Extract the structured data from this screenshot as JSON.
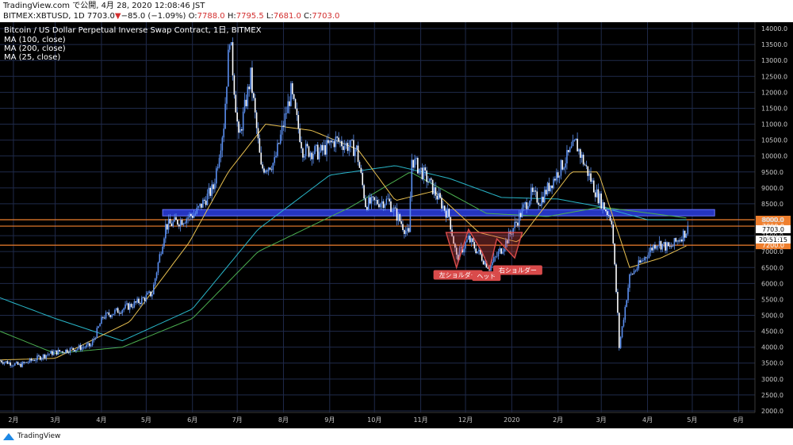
{
  "header": {
    "line1": "TradingView.com で公開, 4月 28, 2020 12:08:46 JST",
    "symbol": "BITMEX:XBTUSD, 1D",
    "last": "7703.0",
    "change": "−85.0 (−1.09%)",
    "o_label": "O:",
    "o": "7788.0",
    "h_label": "H:",
    "h": "7795.5",
    "l_label": "L:",
    "l": "7681.0",
    "c_label": "C:",
    "c": "7703.0"
  },
  "footer": {
    "brand": "TradingView"
  },
  "colors": {
    "candle": "#5b8ff0",
    "grid": "#1f2a4a",
    "ma25": "#e8c050",
    "ma100": "#29b6c8",
    "ma200": "#4caf50",
    "hline": "#ef7f2e",
    "zone": "#2535c0",
    "pattern": "#d94b4b"
  },
  "chart_data": {
    "type": "candlestick",
    "title": "Bitcoin / US Dollar Perpetual Inverse Swap Contract, 1日, BITMEX",
    "legend": [
      "MA (100, close)",
      "MA (200, close)",
      "MA (25, close)"
    ],
    "x_tick_labels": [
      "2月",
      "3月",
      "4月",
      "5月",
      "6月",
      "7月",
      "8月",
      "9月",
      "10月",
      "11月",
      "12月",
      "2020",
      "2月",
      "3月",
      "4月",
      "5月",
      "6月"
    ],
    "y_tick_labels": [
      "14000.0",
      "13500.0",
      "13000.0",
      "12500.0",
      "12000.0",
      "11500.0",
      "11000.0",
      "10500.0",
      "10000.0",
      "9500.0",
      "9000.0",
      "8500.0",
      "8000.0",
      "7500.0",
      "7000.0",
      "6500.0",
      "6000.0",
      "5500.0",
      "5000.0",
      "4500.0",
      "4000.0",
      "3500.0",
      "3000.0",
      "2500.0",
      "2000.0"
    ],
    "ylim": [
      1950,
      14200
    ],
    "price_label": "7703.0",
    "countdown_label": "20:51:15",
    "horizontal_lines": [
      {
        "value": 8000,
        "label": "8000.0",
        "color": "#ef7f2e"
      },
      {
        "value": 7800,
        "label": "7800.0",
        "color": "#ef7f2e"
      },
      {
        "value": 7200,
        "label": "7200.0",
        "color": "#ef7f2e"
      }
    ],
    "resistance_zone": {
      "from": 8120,
      "to": 8320
    },
    "pattern_labels": [
      "左ショルダー",
      "ヘッド",
      "右ショルダー"
    ],
    "price_path": [
      [
        "2019-01-23",
        3580
      ],
      [
        "2019-02-05",
        3430
      ],
      [
        "2019-02-25",
        3800
      ],
      [
        "2019-03-25",
        4050
      ],
      [
        "2019-04-02",
        4950
      ],
      [
        "2019-04-25",
        5400
      ],
      [
        "2019-05-05",
        5700
      ],
      [
        "2019-05-14",
        7800
      ],
      [
        "2019-05-25",
        8000
      ],
      [
        "2019-06-03",
        8200
      ],
      [
        "2019-06-15",
        9000
      ],
      [
        "2019-06-22",
        11000
      ],
      [
        "2019-06-26",
        13800
      ],
      [
        "2019-07-02",
        10500
      ],
      [
        "2019-07-10",
        12500
      ],
      [
        "2019-07-17",
        9600
      ],
      [
        "2019-07-26",
        9800
      ],
      [
        "2019-08-06",
        12000
      ],
      [
        "2019-08-14",
        10200
      ],
      [
        "2019-08-25",
        10100
      ],
      [
        "2019-09-05",
        10500
      ],
      [
        "2019-09-19",
        10200
      ],
      [
        "2019-09-25",
        8500
      ],
      [
        "2019-10-10",
        8600
      ],
      [
        "2019-10-24",
        7500
      ],
      [
        "2019-10-26",
        9900
      ],
      [
        "2019-11-05",
        9300
      ],
      [
        "2019-11-20",
        8100
      ],
      [
        "2019-11-25",
        6800
      ],
      [
        "2019-12-03",
        7400
      ],
      [
        "2019-12-17",
        6500
      ],
      [
        "2019-12-28",
        7300
      ],
      [
        "2020-01-14",
        8800
      ],
      [
        "2020-01-20",
        8600
      ],
      [
        "2020-02-13",
        10400
      ],
      [
        "2020-02-27",
        8800
      ],
      [
        "2020-03-08",
        8000
      ],
      [
        "2020-03-12",
        5000
      ],
      [
        "2020-03-13",
        4000
      ],
      [
        "2020-03-20",
        6200
      ],
      [
        "2020-04-07",
        7300
      ],
      [
        "2020-04-16",
        7100
      ],
      [
        "2020-04-28",
        7700
      ]
    ],
    "ma25_path": [
      [
        "2019-01-23",
        3600
      ],
      [
        "2019-03-01",
        3650
      ],
      [
        "2019-04-20",
        4800
      ],
      [
        "2019-05-30",
        7300
      ],
      [
        "2019-06-25",
        9500
      ],
      [
        "2019-07-20",
        11000
      ],
      [
        "2019-08-20",
        10800
      ],
      [
        "2019-09-20",
        10200
      ],
      [
        "2019-10-15",
        8600
      ],
      [
        "2019-11-10",
        8900
      ],
      [
        "2019-12-10",
        7600
      ],
      [
        "2020-01-05",
        7300
      ],
      [
        "2020-02-10",
        9500
      ],
      [
        "2020-02-28",
        9500
      ],
      [
        "2020-03-20",
        6500
      ],
      [
        "2020-04-10",
        6800
      ],
      [
        "2020-04-28",
        7200
      ]
    ],
    "ma100_path": [
      [
        "2019-01-23",
        5550
      ],
      [
        "2019-03-01",
        4900
      ],
      [
        "2019-04-15",
        4200
      ],
      [
        "2019-06-01",
        5200
      ],
      [
        "2019-07-15",
        7700
      ],
      [
        "2019-09-01",
        9400
      ],
      [
        "2019-10-15",
        9700
      ],
      [
        "2019-11-20",
        9300
      ],
      [
        "2019-12-25",
        8700
      ],
      [
        "2020-02-01",
        8650
      ],
      [
        "2020-03-01",
        8400
      ],
      [
        "2020-04-01",
        8000
      ],
      [
        "2020-04-28",
        8000
      ]
    ],
    "ma200_path": [
      [
        "2019-01-23",
        4500
      ],
      [
        "2019-03-01",
        3800
      ],
      [
        "2019-04-15",
        4000
      ],
      [
        "2019-06-01",
        4900
      ],
      [
        "2019-07-15",
        7000
      ],
      [
        "2019-09-15",
        8400
      ],
      [
        "2019-10-25",
        9500
      ],
      [
        "2019-12-15",
        8200
      ],
      [
        "2020-01-25",
        8100
      ],
      [
        "2020-03-01",
        8400
      ],
      [
        "2020-04-28",
        8050
      ]
    ]
  }
}
